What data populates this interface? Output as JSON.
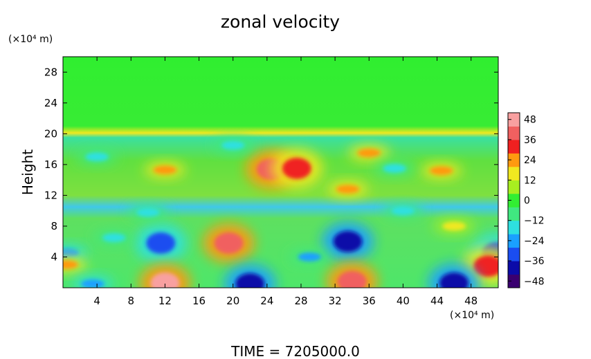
{
  "chart_data": {
    "type": "heatmap",
    "title": "zonal velocity",
    "ylabel": "Height",
    "xlabel": "",
    "y_unit_label": "(×10⁴ m)",
    "x_unit_label": "(×10⁴ m)",
    "footer": "TIME = 7205000.0",
    "x_ticks": [
      4,
      8,
      12,
      16,
      20,
      24,
      28,
      32,
      36,
      40,
      44,
      48
    ],
    "y_ticks": [
      4,
      8,
      12,
      16,
      20,
      24,
      28
    ],
    "xlim": [
      0,
      51.2
    ],
    "ylim": [
      0,
      30
    ],
    "colorbar": {
      "ticks": [
        48,
        36,
        24,
        12,
        0,
        -12,
        -24,
        -36,
        -48
      ],
      "range": [
        -52,
        52
      ],
      "colors": [
        "#3a0070",
        "#0b0ba8",
        "#1a4df0",
        "#1aa0ff",
        "#2ee0e0",
        "#40e880",
        "#32ee32",
        "#a8ee20",
        "#f0e820",
        "#ff9a10",
        "#f02020",
        "#f06060",
        "#f8a0a0"
      ]
    },
    "features": [
      {
        "x": 11.5,
        "y": 5.8,
        "value": -38
      },
      {
        "x": 19.5,
        "y": 5.8,
        "value": 45
      },
      {
        "x": 33.5,
        "y": 6.0,
        "value": -40
      },
      {
        "x": 29.0,
        "y": 4.0,
        "value": -22
      },
      {
        "x": 6.0,
        "y": 6.5,
        "value": -20
      },
      {
        "x": 51.0,
        "y": 4.5,
        "value": -34
      },
      {
        "x": 50.0,
        "y": 2.8,
        "value": 38
      },
      {
        "x": 0.5,
        "y": 4.5,
        "value": -28
      },
      {
        "x": 0.4,
        "y": 3.0,
        "value": 30
      },
      {
        "x": 12.0,
        "y": 0.6,
        "value": 50
      },
      {
        "x": 34.0,
        "y": 0.8,
        "value": 44
      },
      {
        "x": 22.0,
        "y": 0.5,
        "value": -46
      },
      {
        "x": 46.0,
        "y": 0.6,
        "value": -42
      },
      {
        "x": 3.5,
        "y": 0.5,
        "value": -30
      },
      {
        "x": 24.5,
        "y": 15.4,
        "value": 40
      },
      {
        "x": 27.5,
        "y": 15.5,
        "value": 38
      },
      {
        "x": 33.5,
        "y": 12.8,
        "value": 28
      },
      {
        "x": 44.5,
        "y": 15.2,
        "value": 30
      },
      {
        "x": 12.0,
        "y": 15.3,
        "value": 26
      },
      {
        "x": 36.0,
        "y": 17.5,
        "value": 24
      },
      {
        "x": 39.0,
        "y": 15.5,
        "value": -18
      },
      {
        "x": 20.0,
        "y": 18.5,
        "value": -18
      },
      {
        "x": 10.0,
        "y": 9.8,
        "value": -16
      },
      {
        "x": 40.0,
        "y": 10.0,
        "value": -14
      },
      {
        "x": 46.0,
        "y": 8.0,
        "value": 18
      },
      {
        "x": 4.0,
        "y": 17.0,
        "value": -14
      }
    ]
  }
}
